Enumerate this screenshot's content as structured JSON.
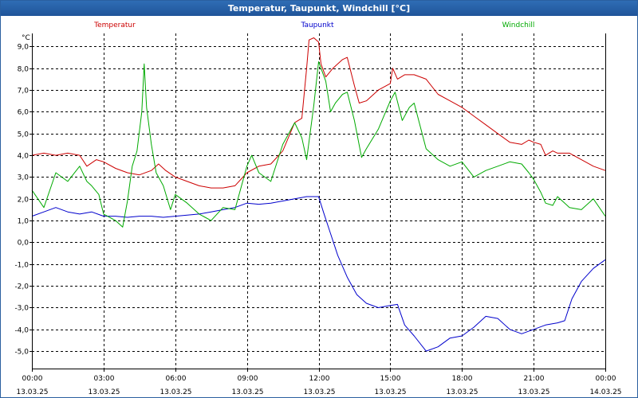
{
  "window": {
    "title": "Temperatur, Taupunkt, Windchill [°C]"
  },
  "chart_data": {
    "type": "line",
    "title": "Temperatur, Taupunkt, Windchill [°C]",
    "ylabel": "°C",
    "ylim": [
      -5.8,
      9.6
    ],
    "xlim": [
      0,
      24
    ],
    "grid": true,
    "legend": "top",
    "y_ticks": [
      {
        "value": 9,
        "label": "9,0"
      },
      {
        "value": 8,
        "label": "8,0"
      },
      {
        "value": 7,
        "label": "7,0"
      },
      {
        "value": 6,
        "label": "6,0"
      },
      {
        "value": 5,
        "label": "5,0"
      },
      {
        "value": 4,
        "label": "4,0"
      },
      {
        "value": 3,
        "label": "3,0"
      },
      {
        "value": 2,
        "label": "2,0"
      },
      {
        "value": 1,
        "label": "1,0"
      },
      {
        "value": 0,
        "label": "0,0"
      },
      {
        "value": -1,
        "label": "-1,0"
      },
      {
        "value": -2,
        "label": "-2,0"
      },
      {
        "value": -3,
        "label": "-3,0"
      },
      {
        "value": -4,
        "label": "-4,0"
      },
      {
        "value": -5,
        "label": "-5,0"
      }
    ],
    "x_ticks": [
      {
        "value": 0,
        "time": "00:00",
        "date": "13.03.25"
      },
      {
        "value": 3,
        "time": "03:00",
        "date": "13.03.25"
      },
      {
        "value": 6,
        "time": "06:00",
        "date": "13.03.25"
      },
      {
        "value": 9,
        "time": "09:00",
        "date": "13.03.25"
      },
      {
        "value": 12,
        "time": "12:00",
        "date": "13.03.25"
      },
      {
        "value": 15,
        "time": "15:00",
        "date": "13.03.25"
      },
      {
        "value": 18,
        "time": "18:00",
        "date": "13.03.25"
      },
      {
        "value": 21,
        "time": "21:00",
        "date": "13.03.25"
      },
      {
        "value": 24,
        "time": "00:00",
        "date": "14.03.25"
      }
    ],
    "series": [
      {
        "name": "Temperatur",
        "color": "#cc0000",
        "points": [
          [
            0,
            4.0
          ],
          [
            0.5,
            4.1
          ],
          [
            1,
            4.0
          ],
          [
            1.5,
            4.1
          ],
          [
            2,
            4.0
          ],
          [
            2.3,
            3.5
          ],
          [
            2.7,
            3.8
          ],
          [
            3,
            3.7
          ],
          [
            3.5,
            3.4
          ],
          [
            4,
            3.2
          ],
          [
            4.5,
            3.1
          ],
          [
            5,
            3.3
          ],
          [
            5.3,
            3.6
          ],
          [
            5.6,
            3.3
          ],
          [
            6,
            3.0
          ],
          [
            6.5,
            2.8
          ],
          [
            7,
            2.6
          ],
          [
            7.5,
            2.5
          ],
          [
            8,
            2.5
          ],
          [
            8.5,
            2.6
          ],
          [
            9,
            3.2
          ],
          [
            9.5,
            3.5
          ],
          [
            10,
            3.6
          ],
          [
            10.5,
            4.2
          ],
          [
            11,
            5.5
          ],
          [
            11.3,
            5.7
          ],
          [
            11.5,
            8.0
          ],
          [
            11.6,
            9.3
          ],
          [
            11.8,
            9.4
          ],
          [
            12,
            9.2
          ],
          [
            12.1,
            8.2
          ],
          [
            12.3,
            7.6
          ],
          [
            12.6,
            8.0
          ],
          [
            13,
            8.4
          ],
          [
            13.2,
            8.5
          ],
          [
            13.5,
            7.2
          ],
          [
            13.7,
            6.4
          ],
          [
            14,
            6.5
          ],
          [
            14.5,
            7.0
          ],
          [
            15,
            7.3
          ],
          [
            15.1,
            8.0
          ],
          [
            15.3,
            7.5
          ],
          [
            15.6,
            7.7
          ],
          [
            16,
            7.7
          ],
          [
            16.5,
            7.5
          ],
          [
            17,
            6.8
          ],
          [
            17.5,
            6.5
          ],
          [
            18,
            6.2
          ],
          [
            18.5,
            5.8
          ],
          [
            19,
            5.4
          ],
          [
            19.5,
            5.0
          ],
          [
            20,
            4.6
          ],
          [
            20.5,
            4.5
          ],
          [
            20.8,
            4.7
          ],
          [
            21,
            4.6
          ],
          [
            21.3,
            4.5
          ],
          [
            21.5,
            4.0
          ],
          [
            21.8,
            4.2
          ],
          [
            22,
            4.1
          ],
          [
            22.5,
            4.1
          ],
          [
            23,
            3.8
          ],
          [
            23.5,
            3.5
          ],
          [
            24,
            3.3
          ]
        ]
      },
      {
        "name": "Taupunkt",
        "color": "#0000cc",
        "points": [
          [
            0,
            1.2
          ],
          [
            0.5,
            1.4
          ],
          [
            1,
            1.6
          ],
          [
            1.5,
            1.4
          ],
          [
            2,
            1.3
          ],
          [
            2.5,
            1.4
          ],
          [
            3,
            1.2
          ],
          [
            3.5,
            1.2
          ],
          [
            4,
            1.15
          ],
          [
            4.5,
            1.2
          ],
          [
            5,
            1.2
          ],
          [
            5.5,
            1.15
          ],
          [
            6,
            1.2
          ],
          [
            6.5,
            1.25
          ],
          [
            7,
            1.3
          ],
          [
            7.5,
            1.4
          ],
          [
            8,
            1.5
          ],
          [
            8.5,
            1.6
          ],
          [
            9,
            1.8
          ],
          [
            9.5,
            1.75
          ],
          [
            10,
            1.8
          ],
          [
            10.5,
            1.9
          ],
          [
            11,
            2.0
          ],
          [
            11.5,
            2.1
          ],
          [
            12,
            2.1
          ],
          [
            12.2,
            1.4
          ],
          [
            12.5,
            0.4
          ],
          [
            12.8,
            -0.6
          ],
          [
            13.2,
            -1.6
          ],
          [
            13.6,
            -2.4
          ],
          [
            14,
            -2.8
          ],
          [
            14.5,
            -3.0
          ],
          [
            15,
            -2.9
          ],
          [
            15.3,
            -2.85
          ],
          [
            15.6,
            -3.8
          ],
          [
            16,
            -4.3
          ],
          [
            16.5,
            -5.0
          ],
          [
            17,
            -4.8
          ],
          [
            17.5,
            -4.4
          ],
          [
            18,
            -4.3
          ],
          [
            18.5,
            -3.9
          ],
          [
            19,
            -3.4
          ],
          [
            19.5,
            -3.5
          ],
          [
            20,
            -4.0
          ],
          [
            20.5,
            -4.2
          ],
          [
            21,
            -4.0
          ],
          [
            21.5,
            -3.8
          ],
          [
            22,
            -3.7
          ],
          [
            22.3,
            -3.6
          ],
          [
            22.6,
            -2.6
          ],
          [
            23,
            -1.8
          ],
          [
            23.5,
            -1.2
          ],
          [
            24,
            -0.8
          ]
        ]
      },
      {
        "name": "Windchill",
        "color": "#00aa00",
        "points": [
          [
            0,
            2.4
          ],
          [
            0.5,
            1.6
          ],
          [
            1,
            3.2
          ],
          [
            1.5,
            2.8
          ],
          [
            2,
            3.5
          ],
          [
            2.3,
            2.8
          ],
          [
            2.5,
            2.6
          ],
          [
            2.8,
            2.2
          ],
          [
            3,
            1.3
          ],
          [
            3.5,
            1.0
          ],
          [
            3.8,
            0.7
          ],
          [
            4,
            1.9
          ],
          [
            4.2,
            3.5
          ],
          [
            4.4,
            4.2
          ],
          [
            4.6,
            6.0
          ],
          [
            4.7,
            8.2
          ],
          [
            4.8,
            6.2
          ],
          [
            5,
            4.5
          ],
          [
            5.2,
            3.2
          ],
          [
            5.5,
            2.6
          ],
          [
            5.8,
            1.5
          ],
          [
            6,
            2.2
          ],
          [
            6.5,
            1.8
          ],
          [
            7,
            1.3
          ],
          [
            7.5,
            1.0
          ],
          [
            8,
            1.6
          ],
          [
            8.5,
            1.5
          ],
          [
            9,
            3.5
          ],
          [
            9.2,
            4.0
          ],
          [
            9.5,
            3.2
          ],
          [
            10,
            2.8
          ],
          [
            10.5,
            4.5
          ],
          [
            11,
            5.5
          ],
          [
            11.3,
            4.8
          ],
          [
            11.5,
            3.8
          ],
          [
            11.8,
            6.3
          ],
          [
            12,
            8.3
          ],
          [
            12.3,
            7.4
          ],
          [
            12.5,
            6.0
          ],
          [
            12.7,
            6.4
          ],
          [
            13,
            6.8
          ],
          [
            13.2,
            6.9
          ],
          [
            13.5,
            5.6
          ],
          [
            13.8,
            3.9
          ],
          [
            14,
            4.3
          ],
          [
            14.5,
            5.2
          ],
          [
            15,
            6.5
          ],
          [
            15.2,
            6.9
          ],
          [
            15.5,
            5.6
          ],
          [
            15.8,
            6.2
          ],
          [
            16,
            6.4
          ],
          [
            16.5,
            4.3
          ],
          [
            17,
            3.8
          ],
          [
            17.5,
            3.5
          ],
          [
            18,
            3.7
          ],
          [
            18.5,
            3.0
          ],
          [
            19,
            3.3
          ],
          [
            19.5,
            3.5
          ],
          [
            20,
            3.7
          ],
          [
            20.5,
            3.6
          ],
          [
            20.8,
            3.2
          ],
          [
            21,
            2.9
          ],
          [
            21.3,
            2.3
          ],
          [
            21.5,
            1.8
          ],
          [
            21.8,
            1.7
          ],
          [
            22,
            2.1
          ],
          [
            22.5,
            1.6
          ],
          [
            23,
            1.5
          ],
          [
            23.5,
            2.0
          ],
          [
            24,
            1.2
          ]
        ]
      }
    ]
  }
}
